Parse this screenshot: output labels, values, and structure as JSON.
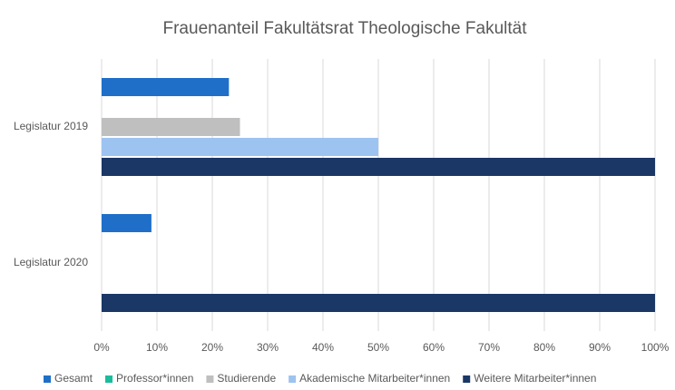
{
  "chart_data": {
    "type": "hbar",
    "title": "Frauenanteil Fakultätsrat Theologische Fakultät",
    "categories": [
      "Legislatur 2019",
      "Legislatur 2020"
    ],
    "series": [
      {
        "name": "Gesamt",
        "color": "#1f6fc9",
        "values": [
          23,
          9
        ]
      },
      {
        "name": "Professor*innen",
        "color": "#1abc9c",
        "values": [
          0,
          0
        ]
      },
      {
        "name": "Studierende",
        "color": "#bfbfbf",
        "values": [
          25,
          0
        ]
      },
      {
        "name": "Akademische Mitarbeiter*innen",
        "color": "#9dc3f0",
        "values": [
          50,
          0
        ]
      },
      {
        "name": "Weitere Mitarbeiter*innen",
        "color": "#1a3766",
        "values": [
          100,
          100
        ]
      }
    ],
    "xlim": [
      0,
      100
    ],
    "xticks": [
      {
        "value": 0,
        "label": "0%"
      },
      {
        "value": 10,
        "label": "10%"
      },
      {
        "value": 20,
        "label": "20%"
      },
      {
        "value": 30,
        "label": "30%"
      },
      {
        "value": 40,
        "label": "40%"
      },
      {
        "value": 50,
        "label": "50%"
      },
      {
        "value": 60,
        "label": "60%"
      },
      {
        "value": 70,
        "label": "70%"
      },
      {
        "value": 80,
        "label": "80%"
      },
      {
        "value": 90,
        "label": "90%"
      },
      {
        "value": 100,
        "label": "100%"
      }
    ],
    "grid": true,
    "legend": "bottom"
  }
}
